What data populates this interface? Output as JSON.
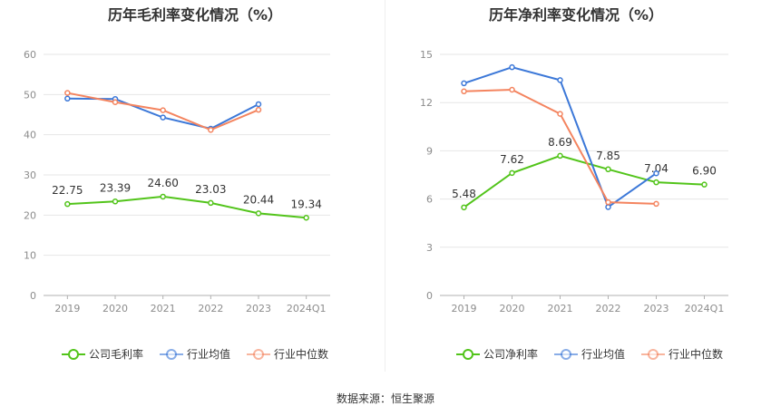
{
  "source": "数据来源：恒生聚源",
  "chart_data": [
    {
      "type": "line",
      "title": "历年毛利率变化情况（%）",
      "categories": [
        "2019",
        "2020",
        "2021",
        "2022",
        "2023",
        "2024Q1"
      ],
      "ylim": [
        0,
        60
      ],
      "yticks": [
        0,
        10,
        20,
        30,
        40,
        50,
        60
      ],
      "grid": true,
      "legend_position": "bottom",
      "series": [
        {
          "name": "公司毛利率",
          "color": "#52c41a",
          "labeled": true,
          "values": [
            22.75,
            23.39,
            24.6,
            23.03,
            20.44,
            19.34
          ]
        },
        {
          "name": "行业均值",
          "color": "#3c78d8",
          "labeled": false,
          "values": [
            49.0,
            48.9,
            44.3,
            41.5,
            47.6,
            null
          ]
        },
        {
          "name": "行业中位数",
          "color": "#f4845f",
          "labeled": false,
          "values": [
            50.4,
            48.1,
            46.1,
            41.2,
            46.2,
            null
          ]
        }
      ]
    },
    {
      "type": "line",
      "title": "历年净利率变化情况（%）",
      "categories": [
        "2019",
        "2020",
        "2021",
        "2022",
        "2023",
        "2024Q1"
      ],
      "ylim": [
        0,
        15
      ],
      "yticks": [
        0,
        3,
        6,
        9,
        12,
        15
      ],
      "grid": true,
      "legend_position": "bottom",
      "series": [
        {
          "name": "公司净利率",
          "color": "#52c41a",
          "labeled": true,
          "values": [
            5.48,
            7.62,
            8.69,
            7.85,
            7.04,
            6.9
          ]
        },
        {
          "name": "行业均值",
          "color": "#3c78d8",
          "labeled": false,
          "values": [
            13.2,
            14.2,
            13.4,
            5.5,
            7.6,
            null
          ]
        },
        {
          "name": "行业中位数",
          "color": "#f4845f",
          "labeled": false,
          "values": [
            12.7,
            12.8,
            11.3,
            5.8,
            5.7,
            null
          ]
        }
      ]
    }
  ]
}
